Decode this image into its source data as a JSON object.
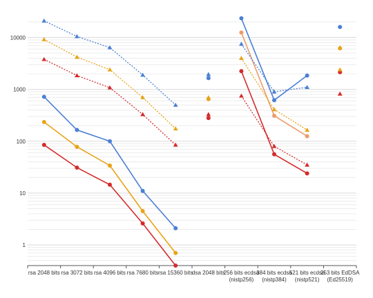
{
  "chart_data": {
    "type": "line",
    "title": "",
    "xlabel": "",
    "ylabel": "",
    "yscale": "log",
    "ylim": [
      0.4,
      27000
    ],
    "grid": "horizontal, minor log gridlines",
    "legend": "none",
    "y_ticks": [
      "1",
      "10",
      "100",
      "1000",
      "10000"
    ],
    "categories": [
      {
        "line1": "rsa 2048 bits",
        "line2": ""
      },
      {
        "line1": "rsa 3072 bits",
        "line2": ""
      },
      {
        "line1": "rsa 4096 bits",
        "line2": ""
      },
      {
        "line1": "rsa 7680 bits",
        "line2": ""
      },
      {
        "line1": "rsa 15360 bits",
        "line2": ""
      },
      {
        "line1": "dsa 2048 bits",
        "line2": ""
      },
      {
        "line1": "256 bits ecdsa",
        "line2": "(nistp256)"
      },
      {
        "line1": "384 bits ecdsa",
        "line2": "(nistp384)"
      },
      {
        "line1": "521 bits ecdsa",
        "line2": "(nistp521)"
      },
      {
        "line1": "253 bits EdDSA",
        "line2": "(Ed25519)"
      }
    ],
    "colors": {
      "blue": "#4a7fd4",
      "orange": "#e8a317",
      "salmon": "#ee9b6a",
      "red": "#d52b2b"
    },
    "series": [
      {
        "color": "#4a7fd4",
        "marker": "circle",
        "dash": "solid",
        "points": [
          [
            0,
            720
          ],
          [
            1,
            165
          ],
          [
            2,
            100
          ],
          [
            3,
            11
          ],
          [
            4,
            2.1
          ]
        ]
      },
      {
        "color": "#e8a317",
        "marker": "circle",
        "dash": "solid",
        "points": [
          [
            0,
            235
          ],
          [
            1,
            78
          ],
          [
            2,
            34
          ],
          [
            3,
            4.5
          ],
          [
            4,
            0.7
          ]
        ]
      },
      {
        "color": "#d52b2b",
        "marker": "circle",
        "dash": "solid",
        "points": [
          [
            0,
            85
          ],
          [
            1,
            31
          ],
          [
            2,
            14.5
          ],
          [
            3,
            2.6
          ],
          [
            4,
            0.4
          ]
        ]
      },
      {
        "color": "#4a7fd4",
        "marker": "triangle",
        "dash": "dotted",
        "points": [
          [
            0,
            21000
          ],
          [
            1,
            10500
          ],
          [
            2,
            6400
          ],
          [
            3,
            1900
          ],
          [
            4,
            500
          ]
        ]
      },
      {
        "color": "#e8a317",
        "marker": "triangle",
        "dash": "dotted",
        "points": [
          [
            0,
            9200
          ],
          [
            1,
            4200
          ],
          [
            2,
            2400
          ],
          [
            3,
            700
          ],
          [
            4,
            175
          ]
        ]
      },
      {
        "color": "#d52b2b",
        "marker": "triangle",
        "dash": "dotted",
        "points": [
          [
            0,
            3800
          ],
          [
            1,
            1850
          ],
          [
            2,
            1080
          ],
          [
            3,
            330
          ],
          [
            4,
            85
          ]
        ]
      },
      {
        "color": "#4a7fd4",
        "marker": "circle",
        "dash": "solid",
        "points": [
          [
            5,
            1650
          ]
        ]
      },
      {
        "color": "#e8a317",
        "marker": "circle",
        "dash": "solid",
        "points": [
          [
            5,
            650
          ]
        ]
      },
      {
        "color": "#d52b2b",
        "marker": "circle",
        "dash": "solid",
        "points": [
          [
            5,
            280
          ]
        ]
      },
      {
        "color": "#4a7fd4",
        "marker": "triangle",
        "dash": "dotted",
        "points": [
          [
            5,
            1950
          ]
        ]
      },
      {
        "color": "#e8a317",
        "marker": "triangle",
        "dash": "dotted",
        "points": [
          [
            5,
            700
          ]
        ]
      },
      {
        "color": "#d52b2b",
        "marker": "triangle",
        "dash": "dotted",
        "points": [
          [
            5,
            330
          ]
        ]
      },
      {
        "color": "#4a7fd4",
        "marker": "circle",
        "dash": "solid",
        "points": [
          [
            6,
            23500
          ],
          [
            7,
            620
          ],
          [
            8,
            1850
          ]
        ]
      },
      {
        "color": "#ee9b6a",
        "marker": "circle",
        "dash": "solid",
        "points": [
          [
            6,
            12500
          ],
          [
            7,
            310
          ],
          [
            8,
            125
          ]
        ]
      },
      {
        "color": "#d52b2b",
        "marker": "circle",
        "dash": "solid",
        "points": [
          [
            6,
            2250
          ],
          [
            7,
            56
          ],
          [
            8,
            24
          ]
        ]
      },
      {
        "color": "#4a7fd4",
        "marker": "triangle",
        "dash": "dotted",
        "points": [
          [
            6,
            7500
          ],
          [
            7,
            900
          ],
          [
            8,
            1100
          ]
        ]
      },
      {
        "color": "#e8a317",
        "marker": "triangle",
        "dash": "dotted",
        "points": [
          [
            6,
            4000
          ],
          [
            7,
            410
          ],
          [
            8,
            165
          ]
        ]
      },
      {
        "color": "#d52b2b",
        "marker": "triangle",
        "dash": "dotted",
        "points": [
          [
            6,
            750
          ],
          [
            7,
            80
          ],
          [
            8,
            35
          ]
        ]
      },
      {
        "color": "#4a7fd4",
        "marker": "circle",
        "dash": "solid",
        "points": [
          [
            9,
            16000
          ]
        ]
      },
      {
        "color": "#e8a317",
        "marker": "circle",
        "dash": "solid",
        "points": [
          [
            9,
            6200
          ]
        ]
      },
      {
        "color": "#d52b2b",
        "marker": "circle",
        "dash": "solid",
        "points": [
          [
            9,
            2150
          ]
        ]
      },
      {
        "color": "#e8a317",
        "marker": "triangle",
        "dash": "dotted",
        "points": [
          [
            9,
            6400
          ],
          [
            9,
            2400
          ]
        ]
      },
      {
        "color": "#d52b2b",
        "marker": "triangle",
        "dash": "dotted",
        "points": [
          [
            9,
            820
          ]
        ]
      }
    ]
  }
}
